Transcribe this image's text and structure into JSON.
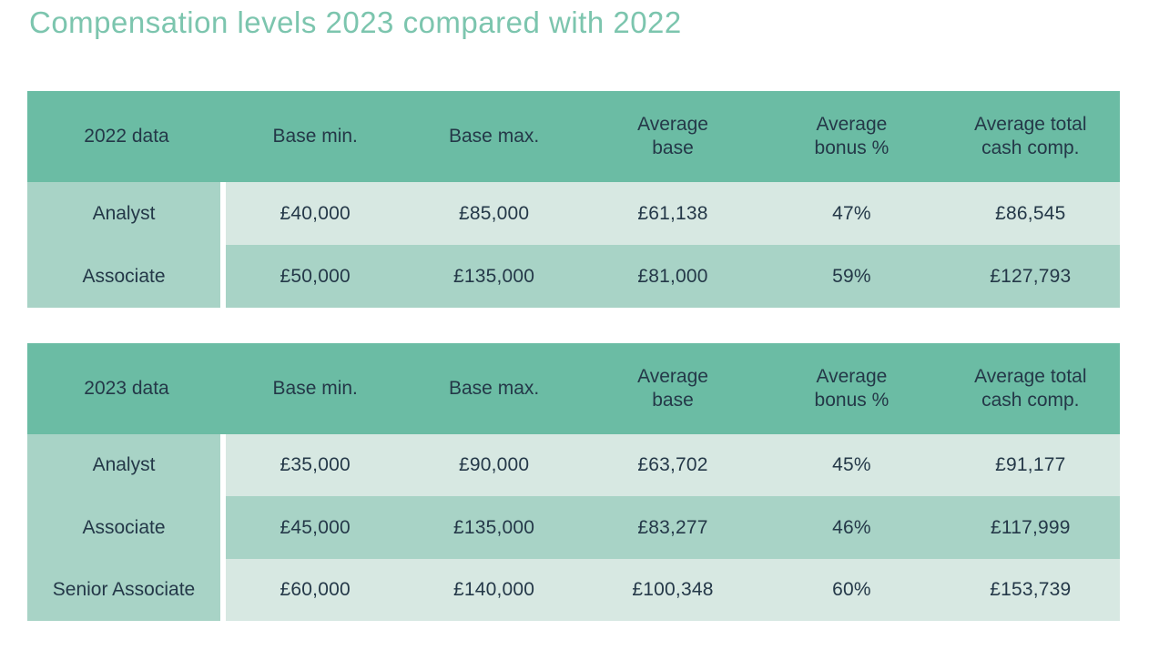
{
  "page": {
    "title": "Compensation levels 2023 compared with 2022"
  },
  "colors": {
    "title_text": "#7cc5ae",
    "header_bg": "#6bbca4",
    "row_mid": "#a8d3c6",
    "row_light": "#d7e8e2",
    "cell_text": "#243848",
    "separator": "#ffffff"
  },
  "tables": [
    {
      "label_header": "2022 data",
      "columns": [
        "Base min.",
        "Base max.",
        "Average\nbase",
        "Average\nbonus %",
        "Average total\ncash comp."
      ],
      "rows": [
        {
          "label": "Analyst",
          "values": [
            "£40,000",
            "£85,000",
            "£61,138",
            "47%",
            "£86,545"
          ]
        },
        {
          "label": "Associate",
          "values": [
            "£50,000",
            "£135,000",
            "£81,000",
            "59%",
            "£127,793"
          ]
        }
      ]
    },
    {
      "label_header": "2023 data",
      "columns": [
        "Base min.",
        "Base max.",
        "Average\nbase",
        "Average\nbonus %",
        "Average total\ncash comp."
      ],
      "rows": [
        {
          "label": "Analyst",
          "values": [
            "£35,000",
            "£90,000",
            "£63,702",
            "45%",
            "£91,177"
          ]
        },
        {
          "label": "Associate",
          "values": [
            "£45,000",
            "£135,000",
            "£83,277",
            "46%",
            "£117,999"
          ]
        },
        {
          "label": "Senior Associate",
          "values": [
            "£60,000",
            "£140,000",
            "£100,348",
            "60%",
            "£153,739"
          ]
        }
      ]
    }
  ]
}
